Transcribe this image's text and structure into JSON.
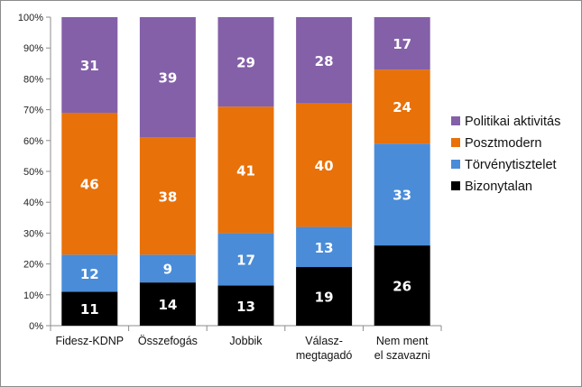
{
  "chart_data": {
    "type": "bar",
    "stacked": true,
    "percent_stacked": true,
    "title": "",
    "xlabel": "",
    "ylabel": "",
    "ylim": [
      0,
      100
    ],
    "y_ticks": [
      "0%",
      "10%",
      "20%",
      "30%",
      "40%",
      "50%",
      "60%",
      "70%",
      "80%",
      "90%",
      "100%"
    ],
    "grid": false,
    "legend_position": "right",
    "categories": [
      [
        "Fidesz-KDNP"
      ],
      [
        "Összefogás"
      ],
      [
        "Jobbik"
      ],
      [
        "Válasz-",
        "megtagadó"
      ],
      [
        "Nem ment",
        "el szavazni"
      ]
    ],
    "series": [
      {
        "name": "Bizonytalan",
        "color": "#000000",
        "values": [
          11,
          14,
          13,
          19,
          26
        ]
      },
      {
        "name": "Törvénytisztelet",
        "color": "#4a8cd8",
        "values": [
          12,
          9,
          17,
          13,
          33
        ]
      },
      {
        "name": "Posztmodern",
        "color": "#e8710a",
        "values": [
          46,
          38,
          41,
          40,
          24
        ]
      },
      {
        "name": "Politikai aktivitás",
        "color": "#8460a8",
        "values": [
          31,
          39,
          29,
          28,
          17
        ]
      }
    ],
    "legend_order": [
      "Politikai aktivitás",
      "Posztmodern",
      "Törvénytisztelet",
      "Bizonytalan"
    ]
  }
}
